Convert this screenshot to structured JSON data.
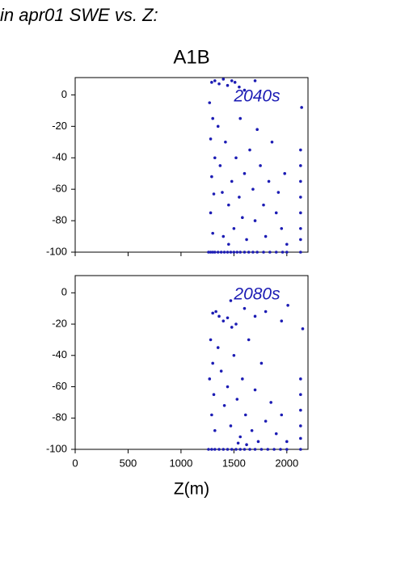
{
  "title": "in apr01 SWE vs. Z:",
  "chart_data": [
    {
      "type": "scatter",
      "title": "A1B",
      "annotation": "2040s",
      "color": "#1c1cb4",
      "xlim": [
        0,
        2200
      ],
      "ylim": [
        -100,
        11
      ],
      "xticks": [
        0,
        500,
        1000,
        1500,
        2000
      ],
      "yticks": [
        0,
        -20,
        -40,
        -60,
        -80,
        -100
      ],
      "x": [
        1260,
        1280,
        1300,
        1320,
        1350,
        1380,
        1410,
        1440,
        1470,
        1500,
        1530,
        1560,
        1600,
        1640,
        1680,
        1720,
        1780,
        1840,
        1900,
        1960,
        2000,
        2130,
        1290,
        1320,
        1360,
        1400,
        1440,
        1480,
        1510,
        1550,
        1600,
        1700,
        1270,
        1300,
        1280,
        1320,
        1290,
        1310,
        1280,
        1300,
        1350,
        1370,
        1390,
        1420,
        1450,
        1480,
        1500,
        1520,
        1550,
        1560,
        1580,
        1600,
        1620,
        1650,
        1680,
        1700,
        1720,
        1750,
        1780,
        1800,
        1830,
        1860,
        1900,
        1920,
        1950,
        1980,
        2000,
        2130,
        2130,
        2130,
        2130,
        2130,
        2130,
        2130,
        2140,
        1400,
        1450
      ],
      "values": [
        -100,
        -100,
        -100,
        -100,
        -100,
        -100,
        -100,
        -100,
        -100,
        -100,
        -100,
        -100,
        -100,
        -100,
        -100,
        -100,
        -100,
        -100,
        -100,
        -100,
        -100,
        -100,
        8,
        9,
        7,
        10,
        6,
        9,
        8,
        5,
        3,
        9,
        -5,
        -15,
        -28,
        -40,
        -52,
        -63,
        -75,
        -88,
        -20,
        -45,
        -62,
        -30,
        -70,
        -55,
        -85,
        -40,
        -65,
        -15,
        -78,
        -50,
        -92,
        -35,
        -60,
        -80,
        -22,
        -45,
        -70,
        -90,
        -55,
        -30,
        -75,
        -62,
        -85,
        -50,
        -95,
        -35,
        -45,
        -55,
        -65,
        -75,
        -85,
        -92,
        -8,
        -90,
        -95
      ]
    },
    {
      "type": "scatter",
      "annotation": "2080s",
      "xlabel": "Z(m)",
      "color": "#1c1cb4",
      "xlim": [
        0,
        2200
      ],
      "ylim": [
        -100,
        11
      ],
      "xticks": [
        0,
        500,
        1000,
        1500,
        2000
      ],
      "yticks": [
        0,
        -20,
        -40,
        -60,
        -80,
        -100
      ],
      "x": [
        1260,
        1290,
        1320,
        1360,
        1400,
        1440,
        1480,
        1520,
        1560,
        1600,
        1650,
        1700,
        1760,
        1820,
        1880,
        1940,
        2000,
        2130,
        1300,
        1330,
        1360,
        1400,
        1440,
        1480,
        1520,
        1470,
        1600,
        1700,
        1800,
        1950,
        2010,
        2150,
        1280,
        1300,
        1270,
        1310,
        1290,
        1320,
        1350,
        1380,
        1410,
        1440,
        1470,
        1500,
        1530,
        1560,
        1580,
        1610,
        1640,
        1670,
        1700,
        1730,
        1760,
        1800,
        1850,
        1900,
        1950,
        2000,
        2130,
        2130,
        2130,
        2130,
        2130,
        1540,
        1620
      ],
      "values": [
        -100,
        -100,
        -100,
        -100,
        -100,
        -100,
        -100,
        -100,
        -100,
        -100,
        -100,
        -100,
        -100,
        -100,
        -100,
        -100,
        -100,
        -100,
        -13,
        -12,
        -15,
        -18,
        -16,
        -22,
        -20,
        -5,
        -10,
        -15,
        -12,
        -18,
        -8,
        -23,
        -30,
        -45,
        -55,
        -65,
        -78,
        -88,
        -35,
        -50,
        -72,
        -60,
        -85,
        -40,
        -68,
        -92,
        -55,
        -78,
        -30,
        -88,
        -62,
        -95,
        -45,
        -82,
        -70,
        -90,
        -78,
        -95,
        -55,
        -65,
        -75,
        -85,
        -93,
        -96,
        -97
      ]
    }
  ]
}
